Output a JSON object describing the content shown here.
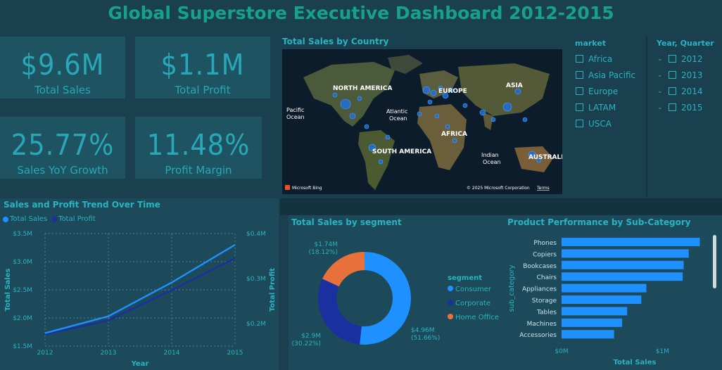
{
  "title": "Global Superstore Executive Dashboard 2012-2015",
  "kpis": {
    "total_sales": {
      "value": "$9.6M",
      "label": "Total Sales"
    },
    "total_profit": {
      "value": "$1.1M",
      "label": "Total Profit"
    },
    "sales_yoy": {
      "value": "25.77%",
      "label": "Sales YoY Growth"
    },
    "profit_margin": {
      "value": "11.48%",
      "label": "Profit Margin"
    }
  },
  "map": {
    "title": "Total Sales by Country",
    "labels": {
      "north_america": "NORTH AMERICA",
      "europe": "EUROPE",
      "asia": "ASIA",
      "pacific": "Pacific\nOcean",
      "atlantic": "Atlantic\nOcean",
      "africa": "AFRICA",
      "south_america": "SOUTH AMERICA",
      "indian": "Indian\nOcean",
      "australia": "AUSTRALIA"
    },
    "attribution": "© 2025 Microsoft Corporation",
    "terms": "Terms",
    "bing": "Microsoft Bing"
  },
  "market_slicer": {
    "header": "market",
    "items": [
      "Africa",
      "Asia Pacific",
      "Europe",
      "LATAM",
      "USCA"
    ]
  },
  "year_slicer": {
    "header": "Year, Quarter",
    "items": [
      "2012",
      "2013",
      "2014",
      "2015"
    ]
  },
  "colors": {
    "sales": "#1e90ff",
    "profit": "#1a2fa0",
    "consumer": "#1e90ff",
    "corporate": "#1a2fa0",
    "home_office": "#e8703a",
    "accent": "#2ab3c0"
  },
  "chart_data": [
    {
      "type": "line",
      "title": "Sales and Profit Trend Over Time",
      "xlabel": "Year",
      "ylabel": "Total Sales",
      "y2label": "Total Profit",
      "x": [
        "2012",
        "2013",
        "2014",
        "2015"
      ],
      "series": [
        {
          "name": "Total Sales",
          "axis": "left",
          "values": [
            1.73,
            2.03,
            2.63,
            3.3
          ]
        },
        {
          "name": "Total Profit",
          "axis": "right",
          "values": [
            0.176,
            0.207,
            0.274,
            0.345
          ]
        }
      ],
      "ylim": [
        1.5,
        3.5
      ],
      "y2lim": [
        0.15,
        0.4
      ],
      "yticks": [
        "$1.5M",
        "$2.0M",
        "$2.5M",
        "$3.0M",
        "$3.5M"
      ],
      "y2ticks": [
        "$0.2M",
        "$0.3M",
        "$0.4M"
      ],
      "grid": true,
      "legend": "top-left"
    },
    {
      "type": "pie",
      "title": "Total Sales by segment",
      "legend_title": "segment",
      "categories": [
        "Consumer",
        "Corporate",
        "Home Office"
      ],
      "values": [
        4.96,
        2.9,
        1.74
      ],
      "value_labels": [
        "$4.96M",
        "$2.9M",
        "$1.74M"
      ],
      "percent_labels": [
        "(51.66%)",
        "(30.22%)",
        "(18.12%)"
      ],
      "legend": "right"
    },
    {
      "type": "bar",
      "title": "Product Performance by Sub-Category",
      "xlabel": "Total Sales",
      "ylabel": "sub_category",
      "categories": [
        "Phones",
        "Copiers",
        "Bookcases",
        "Chairs",
        "Appliances",
        "Storage",
        "Tables",
        "Machines",
        "Accessories"
      ],
      "values": [
        1.37,
        1.26,
        1.21,
        1.2,
        0.84,
        0.79,
        0.65,
        0.6,
        0.52
      ],
      "xlim": [
        0,
        1.45
      ],
      "xticks": [
        "$0M",
        "$1M"
      ]
    }
  ]
}
